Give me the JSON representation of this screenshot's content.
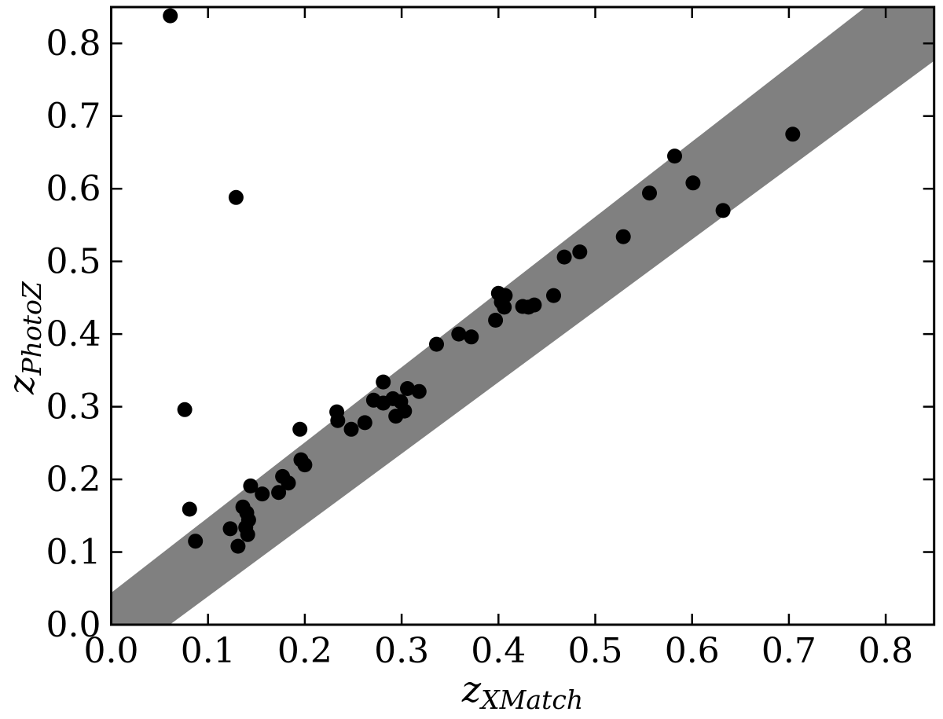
{
  "figure": {
    "background": "#ffffff",
    "xlabel_main": "z",
    "xlabel_sub": "XMatch",
    "ylabel_main": "z",
    "ylabel_sub": "PhotoZ"
  },
  "chart_data": {
    "type": "scatter",
    "title": "",
    "xlabel": "z_XMatch",
    "ylabel": "z_PhotoZ",
    "xlim": [
      0.0,
      0.85
    ],
    "ylim": [
      0.0,
      0.85
    ],
    "grid": false,
    "legend": null,
    "x_tick_values": [
      0.0,
      0.1,
      0.2,
      0.3,
      0.4,
      0.5,
      0.6,
      0.7,
      0.8
    ],
    "x_tick_labels": [
      "0.0",
      "0.1",
      "0.2",
      "0.3",
      "0.4",
      "0.5",
      "0.6",
      "0.7",
      "0.8"
    ],
    "y_tick_values": [
      0.0,
      0.1,
      0.2,
      0.3,
      0.4,
      0.5,
      0.6,
      0.7,
      0.8
    ],
    "y_tick_labels": [
      "0.0",
      "0.1",
      "0.2",
      "0.3",
      "0.4",
      "0.5",
      "0.6",
      "0.7",
      "0.8"
    ],
    "marker_color": "#000000",
    "axis_color": "#000000",
    "band": {
      "description": "diagonal agreement band, approximately y = x +/- 0.04(1+x)",
      "color": "#808080",
      "polygon_xy": [
        [
          0.0605,
          0.0
        ],
        [
          0.85,
          0.776
        ],
        [
          0.85,
          0.85
        ],
        [
          0.779,
          0.85
        ],
        [
          0.0,
          0.044
        ],
        [
          0.0,
          0.0
        ]
      ]
    },
    "points_xy": [
      [
        0.061,
        0.838
      ],
      [
        0.129,
        0.588
      ],
      [
        0.076,
        0.296
      ],
      [
        0.081,
        0.159
      ],
      [
        0.087,
        0.115
      ],
      [
        0.195,
        0.269
      ],
      [
        0.123,
        0.132
      ],
      [
        0.131,
        0.108
      ],
      [
        0.136,
        0.162
      ],
      [
        0.14,
        0.154
      ],
      [
        0.142,
        0.144
      ],
      [
        0.139,
        0.134
      ],
      [
        0.141,
        0.124
      ],
      [
        0.144,
        0.191
      ],
      [
        0.156,
        0.18
      ],
      [
        0.173,
        0.182
      ],
      [
        0.177,
        0.204
      ],
      [
        0.183,
        0.195
      ],
      [
        0.196,
        0.227
      ],
      [
        0.2,
        0.22
      ],
      [
        0.233,
        0.293
      ],
      [
        0.234,
        0.281
      ],
      [
        0.248,
        0.269
      ],
      [
        0.262,
        0.278
      ],
      [
        0.271,
        0.309
      ],
      [
        0.281,
        0.334
      ],
      [
        0.281,
        0.305
      ],
      [
        0.291,
        0.311
      ],
      [
        0.299,
        0.307
      ],
      [
        0.294,
        0.287
      ],
      [
        0.303,
        0.294
      ],
      [
        0.306,
        0.325
      ],
      [
        0.318,
        0.321
      ],
      [
        0.336,
        0.386
      ],
      [
        0.359,
        0.4
      ],
      [
        0.372,
        0.396
      ],
      [
        0.397,
        0.419
      ],
      [
        0.4,
        0.456
      ],
      [
        0.403,
        0.444
      ],
      [
        0.406,
        0.437
      ],
      [
        0.407,
        0.453
      ],
      [
        0.425,
        0.438
      ],
      [
        0.431,
        0.437
      ],
      [
        0.437,
        0.44
      ],
      [
        0.457,
        0.453
      ],
      [
        0.468,
        0.506
      ],
      [
        0.484,
        0.513
      ],
      [
        0.529,
        0.534
      ],
      [
        0.556,
        0.594
      ],
      [
        0.582,
        0.645
      ],
      [
        0.601,
        0.608
      ],
      [
        0.632,
        0.57
      ],
      [
        0.704,
        0.675
      ]
    ]
  }
}
